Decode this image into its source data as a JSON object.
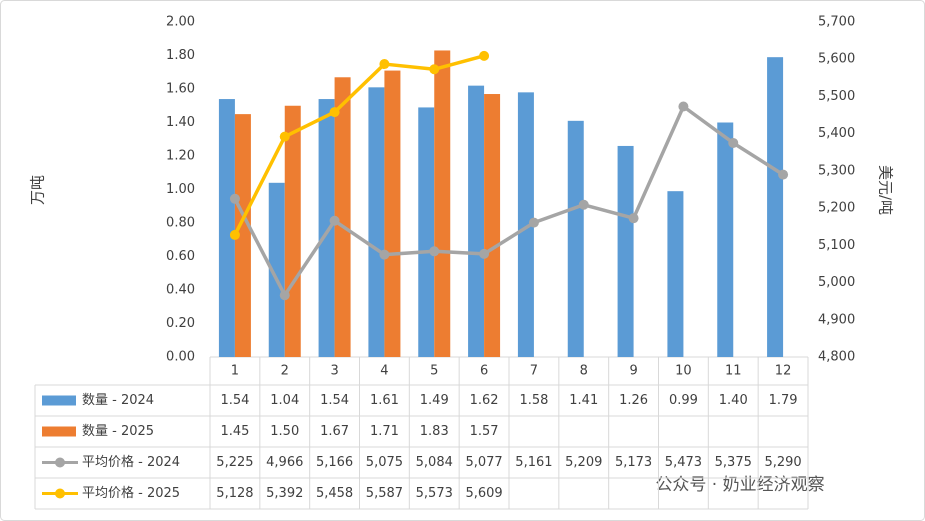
{
  "chart_data": {
    "type": "bar_line_table",
    "y_label": "万吨",
    "y2_label": "美元/吨",
    "categories": [
      "1",
      "2",
      "3",
      "4",
      "5",
      "6",
      "7",
      "8",
      "9",
      "10",
      "11",
      "12"
    ],
    "series": [
      {
        "name": "数量 - 2024",
        "kind": "bar",
        "color": "#5b9bd5",
        "values": [
          1.54,
          1.04,
          1.54,
          1.61,
          1.49,
          1.62,
          1.58,
          1.41,
          1.26,
          0.99,
          1.4,
          1.79
        ],
        "value_labels": [
          "1.54",
          "1.04",
          "1.54",
          "1.61",
          "1.49",
          "1.62",
          "1.58",
          "1.41",
          "1.26",
          "0.99",
          "1.40",
          "1.79"
        ]
      },
      {
        "name": "数量 - 2025",
        "kind": "bar",
        "color": "#ed7d31",
        "values": [
          1.45,
          1.5,
          1.67,
          1.71,
          1.83,
          1.57,
          null,
          null,
          null,
          null,
          null,
          null
        ],
        "value_labels": [
          "1.45",
          "1.50",
          "1.67",
          "1.71",
          "1.83",
          "1.57",
          null,
          null,
          null,
          null,
          null,
          null
        ]
      },
      {
        "name": "平均价格 - 2024",
        "kind": "line",
        "axis": "y2",
        "color": "#a5a5a5",
        "values": [
          5225,
          4966,
          5166,
          5075,
          5084,
          5077,
          5161,
          5209,
          5173,
          5473,
          5375,
          5290
        ],
        "value_labels": [
          "5,225",
          "4,966",
          "5,166",
          "5,075",
          "5,084",
          "5,077",
          "5,161",
          "5,209",
          "5,173",
          "5,473",
          "5,375",
          "5,290"
        ]
      },
      {
        "name": "平均价格 - 2025",
        "kind": "line",
        "axis": "y2",
        "color": "#ffc000",
        "values": [
          5128,
          5392,
          5458,
          5587,
          5573,
          5609,
          null,
          null,
          null,
          null,
          null,
          null
        ],
        "value_labels": [
          "5,128",
          "5,392",
          "5,458",
          "5,587",
          "5,573",
          "5,609",
          null,
          null,
          null,
          null,
          null,
          null
        ]
      }
    ],
    "ylim": [
      0,
      2
    ],
    "yticks": [
      {
        "value": 0,
        "label": "0.00"
      },
      {
        "value": 0.2,
        "label": "0.20"
      },
      {
        "value": 0.4,
        "label": "0.40"
      },
      {
        "value": 0.6,
        "label": "0.60"
      },
      {
        "value": 0.8,
        "label": "0.80"
      },
      {
        "value": 1,
        "label": "1.00"
      },
      {
        "value": 1.2,
        "label": "1.20"
      },
      {
        "value": 1.4,
        "label": "1.40"
      },
      {
        "value": 1.6,
        "label": "1.60"
      },
      {
        "value": 1.8,
        "label": "1.80"
      },
      {
        "value": 2,
        "label": "2.00"
      }
    ],
    "y2lim": [
      4800,
      5700
    ],
    "y2ticks": [
      {
        "value": 4800,
        "label": "4,800"
      },
      {
        "value": 4900,
        "label": "4,900"
      },
      {
        "value": 5000,
        "label": "5,000"
      },
      {
        "value": 5100,
        "label": "5,100"
      },
      {
        "value": 5200,
        "label": "5,200"
      },
      {
        "value": 5300,
        "label": "5,300"
      },
      {
        "value": 5400,
        "label": "5,400"
      },
      {
        "value": 5500,
        "label": "5,500"
      },
      {
        "value": 5600,
        "label": "5,600"
      },
      {
        "value": 5700,
        "label": "5,700"
      }
    ],
    "grid": false,
    "watermark": "公众号 · 奶业经济观察"
  }
}
